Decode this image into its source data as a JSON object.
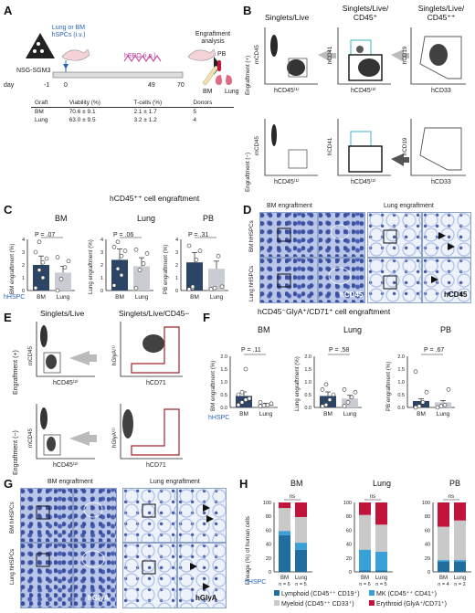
{
  "panels": {
    "A": "A",
    "B": "B",
    "C": "C",
    "D": "D",
    "E": "E",
    "F": "F",
    "G": "G",
    "H": "H"
  },
  "panelA": {
    "mouse_strain": "NSG-SGM3",
    "transplant": "Lung or BM hSPCs (i.v.)",
    "epo": "hEPO (i.p.)",
    "analysis": "Engraftment analysis",
    "day_label": "day",
    "days": [
      "-1",
      "0",
      "49",
      "70"
    ],
    "tissues": [
      "BM",
      "PB",
      "Lung"
    ],
    "table": {
      "headers": [
        "Graft",
        "Viability (%)",
        "T-cells (%)",
        "Donors"
      ],
      "rows": [
        [
          "BM",
          "70.6 ± 9.1",
          "2.1 ± 1.7",
          "5"
        ],
        [
          "Lung",
          "63.0 ± 9.5",
          "3.2 ± 1.2",
          "4"
        ]
      ]
    }
  },
  "panelB": {
    "col_titles": [
      "Singlets/Live",
      "Singlets/Live/ CD45⁺",
      "Singlets/Live/ CD45⁺⁺"
    ],
    "row_labels": [
      "Engraftment (+)",
      "Engraftment (−)"
    ],
    "y_axes": [
      "mCD45",
      "hCD41",
      "hCD19"
    ],
    "x_axes": [
      "hCD45⁽¹⁾",
      "hCD45⁽²⁾",
      "hCD33"
    ]
  },
  "panelC": {
    "title": "hCD45⁺⁺ cell engraftment",
    "x_label_left": "hHSPC",
    "subplots": [
      {
        "organ": "BM",
        "ylabel": "BM engraftment (%)",
        "p": "P = .07",
        "yticks": [
          "0",
          "1",
          "2",
          "3",
          "4",
          "50",
          "100"
        ]
      },
      {
        "organ": "Lung",
        "ylabel": "Lung engraftment (%)",
        "p": "P = .06",
        "yticks": [
          "0",
          "1",
          "2",
          "3",
          "4",
          "50",
          "100"
        ]
      },
      {
        "organ": "PB",
        "ylabel": "PB engraftment (%)",
        "p": "P = .31",
        "yticks": [
          "0",
          "1",
          "2",
          "3",
          "4",
          "50",
          "100"
        ]
      }
    ],
    "groups": [
      "BM",
      "Lung"
    ]
  },
  "panelD": {
    "col_titles": [
      "BM engraftment",
      "Lung engraftment"
    ],
    "row_labels": [
      "BM hHSPCs",
      "Lung hHSPCs"
    ],
    "stain": "hCD45"
  },
  "panelE": {
    "col_titles": [
      "Singlets/Live",
      "Singlets/Live/CD45−"
    ],
    "row_labels": [
      "Engraftment (+)",
      "Engraftment (−)"
    ],
    "y_axes": [
      "mCD45",
      "hGlyA⁽¹⁾"
    ],
    "x_axes": [
      "hCD45⁽²⁾",
      "hCD71"
    ]
  },
  "panelF": {
    "title": "hCD45⁻GlyA⁺/CD71⁺ cell engraftment",
    "x_label_left": "hHSPC",
    "subplots": [
      {
        "organ": "BM",
        "ylabel": "BM engraftment (%)",
        "p": "P = .11",
        "yticks": [
          "0.0",
          "0.5",
          "1.0",
          "1.5",
          "2.0"
        ]
      },
      {
        "organ": "Lung",
        "ylabel": "Lung engraftment (%)",
        "p": "P = .58",
        "yticks": [
          "0.0",
          "0.5",
          "1.0",
          "1.5",
          "2.0"
        ]
      },
      {
        "organ": "PB",
        "ylabel": "PB engraftment (%)",
        "p": "P = .67",
        "yticks": [
          "0.0",
          "0.5",
          "1.0",
          "1.5",
          "2.0"
        ]
      }
    ],
    "groups": [
      "BM",
      "Lung"
    ]
  },
  "panelG": {
    "col_titles": [
      "BM engraftment",
      "Lung engraftment"
    ],
    "row_labels": [
      "BM hHSPCs",
      "Lung hHSPCs"
    ],
    "stain": "hGlyA"
  },
  "panelH": {
    "ylabel": "Lineage (%) of human cells",
    "x_label_left": "hHSPC",
    "ns": "ns",
    "subplots": [
      {
        "organ": "BM",
        "groups": [
          "BM",
          "Lung"
        ],
        "n": [
          "n = 6",
          "n = 5"
        ]
      },
      {
        "organ": "Lung",
        "groups": [
          "BM",
          "Lung"
        ],
        "n": [
          "n = 6",
          "n = 5"
        ]
      },
      {
        "organ": "PB",
        "groups": [
          "BM",
          "Lung"
        ],
        "n": [
          "n = 4",
          "n = 2"
        ]
      }
    ],
    "legend": [
      {
        "label": "Lymphoid (CD45⁺⁺ CD19⁺)",
        "color": "#1f6e9e"
      },
      {
        "label": "MK (CD45⁺⁺ CD41⁺)",
        "color": "#3aa0d8"
      },
      {
        "label": "Myeloid (CD45⁺⁺ CD33⁺)",
        "color": "#c9c9c9"
      },
      {
        "label": "Erythroid (GlyA⁺/CD71⁺)",
        "color": "#c2143a"
      }
    ],
    "yticks": [
      "0",
      "20",
      "40",
      "60",
      "80",
      "100"
    ]
  },
  "chart_data": [
    {
      "type": "bar",
      "title": "hCD45⁺⁺ cell engraftment — BM",
      "ylabel": "BM engraftment (%)",
      "categories": [
        "BM",
        "Lung"
      ],
      "values": [
        2.0,
        1.4
      ],
      "points": [
        [
          0.2,
          1.6,
          2.2,
          2.5,
          3.0,
          3.8,
          1.0
        ],
        [
          0.0,
          0.9,
          1.8,
          2.3,
          2.6
        ]
      ]
    },
    {
      "type": "bar",
      "title": "hCD45⁺⁺ cell engraftment — Lung",
      "ylabel": "Lung engraftment (%)",
      "categories": [
        "BM",
        "Lung"
      ],
      "values": [
        2.4,
        1.9
      ],
      "points": [
        [
          0.4,
          1.7,
          2.7,
          3.1,
          3.4,
          3.8,
          1.2
        ],
        [
          0.2,
          1.6,
          2.1,
          2.9,
          3.2
        ]
      ]
    },
    {
      "type": "bar",
      "title": "hCD45⁺⁺ cell engraftment — PB",
      "ylabel": "PB engraftment (%)",
      "categories": [
        "BM",
        "Lung"
      ],
      "values": [
        2.2,
        1.7
      ],
      "points": [
        [
          0.1,
          0.2,
          2.4,
          3.1,
          3.5,
          0.3
        ],
        [
          0.1,
          0.2,
          2.7,
          0.3
        ]
      ]
    },
    {
      "type": "bar",
      "title": "hCD45⁻GlyA⁺/CD71⁺ cell engraftment — BM",
      "ylabel": "BM engraftment (%)",
      "categories": [
        "BM",
        "Lung"
      ],
      "values": [
        0.45,
        0.12
      ],
      "points": [
        [
          0.1,
          0.2,
          0.3,
          0.35,
          0.5,
          0.6,
          1.5
        ],
        [
          0.05,
          0.08,
          0.1,
          0.15,
          0.2
        ]
      ]
    },
    {
      "type": "bar",
      "title": "hCD45⁻GlyA⁺/CD71⁺ cell engraftment — Lung",
      "ylabel": "Lung engraftment (%)",
      "categories": [
        "BM",
        "Lung"
      ],
      "values": [
        0.45,
        0.35
      ],
      "points": [
        [
          0.05,
          0.1,
          0.3,
          0.5,
          0.7,
          0.9
        ],
        [
          0.05,
          0.2,
          0.4,
          0.6,
          0.7
        ]
      ]
    },
    {
      "type": "bar",
      "title": "hCD45⁻GlyA⁺/CD71⁺ cell engraftment — PB",
      "ylabel": "PB engraftment (%)",
      "categories": [
        "BM",
        "Lung"
      ],
      "values": [
        0.25,
        0.2
      ],
      "points": [
        [
          0.0,
          0.05,
          0.2,
          0.6,
          1.4
        ],
        [
          0.0,
          0.05,
          0.1,
          0.7
        ]
      ]
    },
    {
      "type": "bar",
      "stacked": true,
      "title": "Lineage — BM",
      "ylabel": "Lineage (%) of human cells",
      "categories": [
        "BM",
        "Lung"
      ],
      "ylim": [
        0,
        100
      ],
      "series": [
        {
          "name": "Lymphoid (CD45⁺⁺ CD19⁺)",
          "values": [
            53,
            32
          ]
        },
        {
          "name": "MK (CD45⁺⁺ CD41⁺)",
          "values": [
            6,
            10
          ]
        },
        {
          "name": "Myeloid (CD45⁺⁺ CD33⁺)",
          "values": [
            33,
            37
          ]
        },
        {
          "name": "Erythroid (GlyA⁺/CD71⁺)",
          "values": [
            8,
            21
          ]
        }
      ]
    },
    {
      "type": "bar",
      "stacked": true,
      "title": "Lineage — Lung",
      "ylabel": "Lineage (%) of human cells",
      "categories": [
        "BM",
        "Lung"
      ],
      "ylim": [
        0,
        100
      ],
      "series": [
        {
          "name": "Lymphoid (CD45⁺⁺ CD19⁺)",
          "values": [
            2,
            2
          ]
        },
        {
          "name": "MK (CD45⁺⁺ CD41⁺)",
          "values": [
            30,
            27
          ]
        },
        {
          "name": "Myeloid (CD45⁺⁺ CD33⁺)",
          "values": [
            50,
            39
          ]
        },
        {
          "name": "Erythroid (GlyA⁺/CD71⁺)",
          "values": [
            18,
            32
          ]
        }
      ]
    },
    {
      "type": "bar",
      "stacked": true,
      "title": "Lineage — PB",
      "ylabel": "Lineage (%) of human cells",
      "categories": [
        "BM",
        "Lung"
      ],
      "ylim": [
        0,
        100
      ],
      "series": [
        {
          "name": "Lymphoid (CD45⁺⁺ CD19⁺)",
          "values": [
            15,
            15
          ]
        },
        {
          "name": "MK (CD45⁺⁺ CD41⁺)",
          "values": [
            2,
            2
          ]
        },
        {
          "name": "Myeloid (CD45⁺⁺ CD33⁺)",
          "values": [
            48,
            57
          ]
        },
        {
          "name": "Erythroid (GlyA⁺/CD71⁺)",
          "values": [
            35,
            26
          ]
        }
      ]
    }
  ]
}
